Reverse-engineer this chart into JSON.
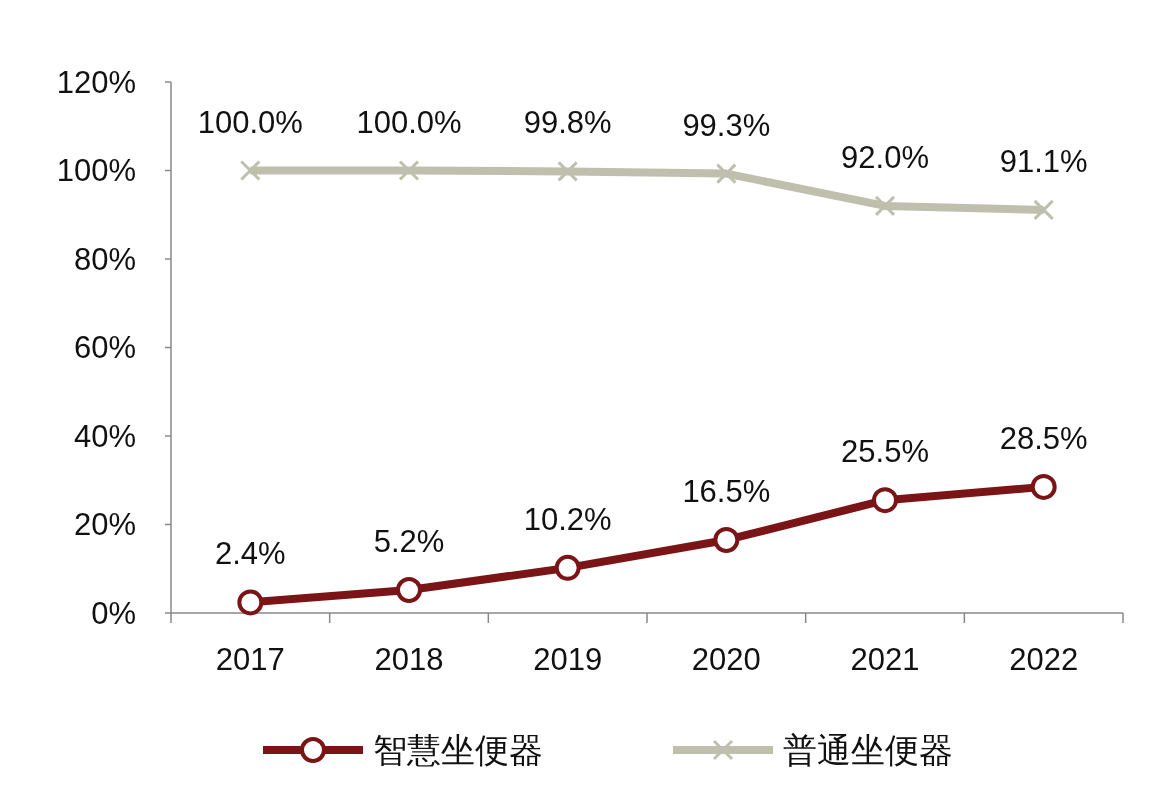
{
  "chart_data": {
    "type": "line",
    "categories": [
      "2017",
      "2018",
      "2019",
      "2020",
      "2021",
      "2022"
    ],
    "series": [
      {
        "name": "智慧坐便器",
        "color": "#7b1416",
        "marker": "circle",
        "values": [
          2.4,
          5.2,
          10.2,
          16.5,
          25.5,
          28.5
        ],
        "value_labels": [
          "2.4%",
          "5.2%",
          "10.2%",
          "16.5%",
          "25.5%",
          "28.5%"
        ]
      },
      {
        "name": "普通坐便器",
        "color": "#bfbfae",
        "marker": "cross",
        "values": [
          100.0,
          100.0,
          99.8,
          99.3,
          92.0,
          91.1
        ],
        "value_labels": [
          "100.0%",
          "100.0%",
          "99.8%",
          "99.3%",
          "92.0%",
          "91.1%"
        ]
      }
    ],
    "ylim": [
      0,
      120
    ],
    "yticks": [
      {
        "value": 0,
        "label": "0%"
      },
      {
        "value": 20,
        "label": "20%"
      },
      {
        "value": 40,
        "label": "40%"
      },
      {
        "value": 60,
        "label": "60%"
      },
      {
        "value": 80,
        "label": "80%"
      },
      {
        "value": 100,
        "label": "100%"
      },
      {
        "value": 120,
        "label": "120%"
      }
    ],
    "grid": false,
    "legend": "bottom"
  }
}
